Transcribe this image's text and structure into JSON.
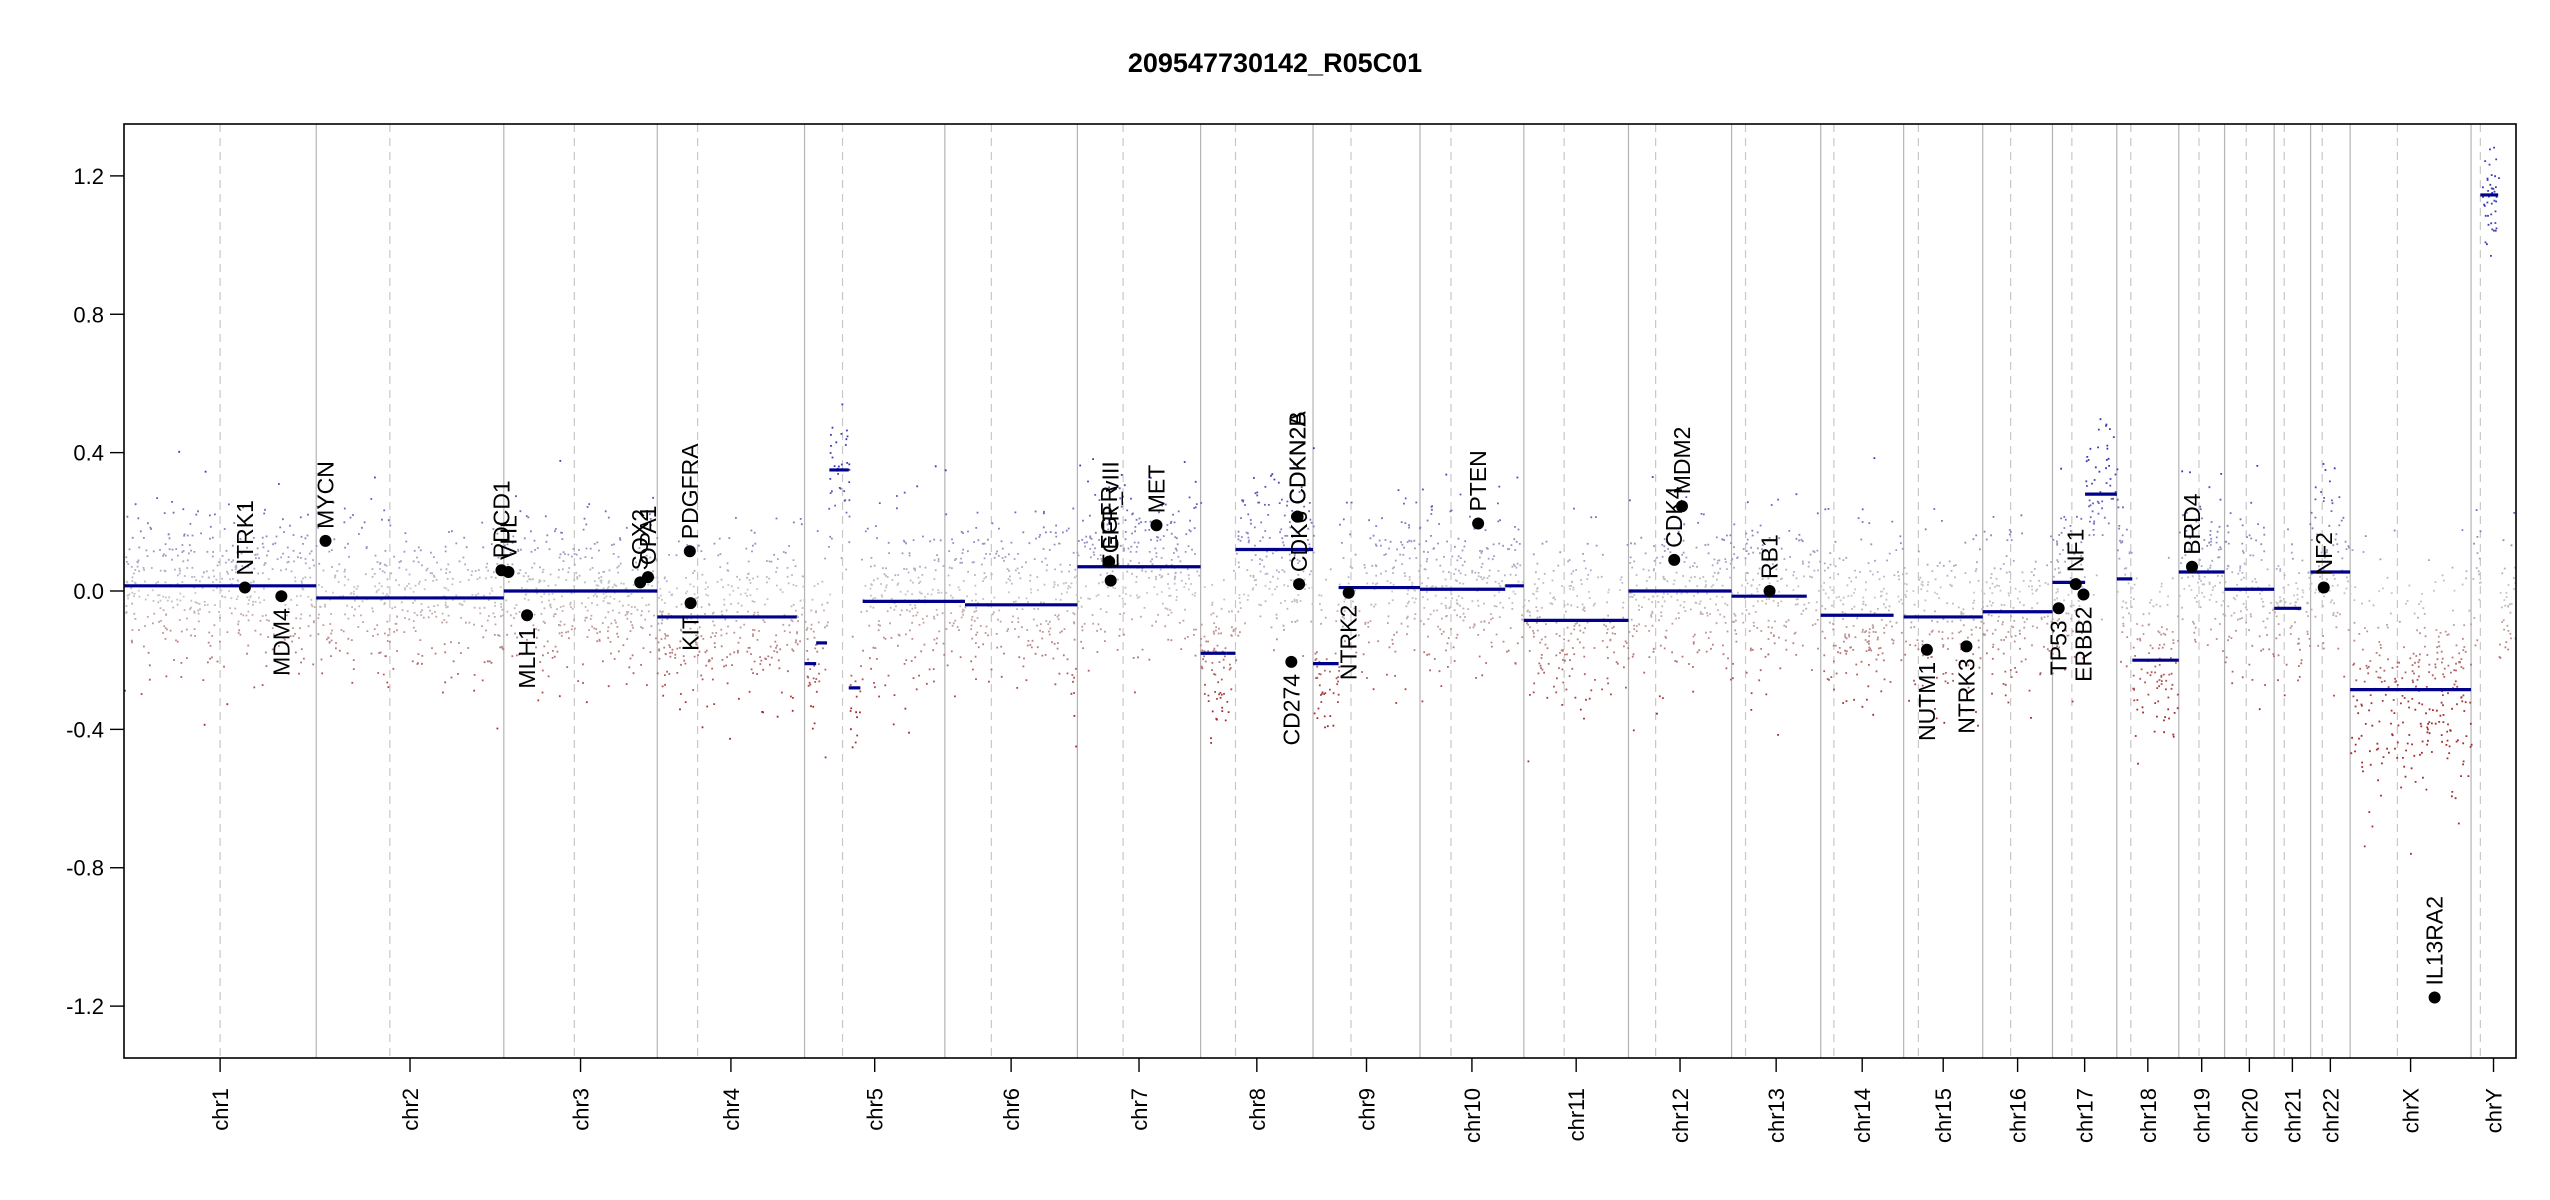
{
  "chart_data": {
    "type": "scatter",
    "title": "209547730142_R05C01",
    "xlabel": "",
    "ylabel": "",
    "ylim": [
      -1.35,
      1.35
    ],
    "yticks": [
      "1.2",
      "0.8",
      "0.4",
      "0.0",
      "-0.4",
      "-0.8",
      "-1.2"
    ],
    "ytick_values": [
      1.2,
      0.8,
      0.4,
      0.0,
      -0.4,
      -0.8,
      -1.2
    ],
    "colors": {
      "segment": "#00008b",
      "gain": "#3a3ab8",
      "loss": "#a52a2a",
      "neutral": "#c8c8c8",
      "axis": "#000000",
      "boundary": "#b4b4b4",
      "centromere": "#c8c8c8"
    },
    "chromosomes": [
      {
        "name": "chr1",
        "start": 0,
        "end": 248,
        "centromere": 124
      },
      {
        "name": "chr2",
        "start": 248,
        "end": 490,
        "centromere": 343
      },
      {
        "name": "chr3",
        "start": 490,
        "end": 688,
        "centromere": 581
      },
      {
        "name": "chr4",
        "start": 688,
        "end": 878,
        "centromere": 740
      },
      {
        "name": "chr5",
        "start": 878,
        "end": 1059,
        "centromere": 927
      },
      {
        "name": "chr6",
        "start": 1059,
        "end": 1230,
        "centromere": 1119
      },
      {
        "name": "chr7",
        "start": 1230,
        "end": 1389,
        "centromere": 1289
      },
      {
        "name": "chr8",
        "start": 1389,
        "end": 1534,
        "centromere": 1434
      },
      {
        "name": "chr9",
        "start": 1534,
        "end": 1672,
        "centromere": 1583
      },
      {
        "name": "chr10",
        "start": 1672,
        "end": 1806,
        "centromere": 1712
      },
      {
        "name": "chr11",
        "start": 1806,
        "end": 1941,
        "centromere": 1858
      },
      {
        "name": "chr12",
        "start": 1941,
        "end": 2074,
        "centromere": 1976
      },
      {
        "name": "chr13",
        "start": 2074,
        "end": 2189,
        "centromere": 2092
      },
      {
        "name": "chr14",
        "start": 2189,
        "end": 2296,
        "centromere": 2206
      },
      {
        "name": "chr15",
        "start": 2296,
        "end": 2398,
        "centromere": 2315
      },
      {
        "name": "chr16",
        "start": 2398,
        "end": 2488,
        "centromere": 2434
      },
      {
        "name": "chr17",
        "start": 2488,
        "end": 2571,
        "centromere": 2513
      },
      {
        "name": "chr18",
        "start": 2571,
        "end": 2651,
        "centromere": 2589
      },
      {
        "name": "chr19",
        "start": 2651,
        "end": 2710,
        "centromere": 2677
      },
      {
        "name": "chr20",
        "start": 2710,
        "end": 2774,
        "centromere": 2738
      },
      {
        "name": "chr21",
        "start": 2774,
        "end": 2821,
        "centromere": 2787
      },
      {
        "name": "chr22",
        "start": 2821,
        "end": 2872,
        "centromere": 2836
      },
      {
        "name": "chrX",
        "start": 2872,
        "end": 3028,
        "centromere": 2933
      },
      {
        "name": "chrY",
        "start": 3028,
        "end": 3086,
        "centromere": 3040
      }
    ],
    "segments": [
      {
        "x0": 0,
        "x1": 248,
        "y": 0.015
      },
      {
        "x0": 248,
        "x1": 490,
        "y": -0.02
      },
      {
        "x0": 490,
        "x1": 688,
        "y": 0.0
      },
      {
        "x0": 688,
        "x1": 868,
        "y": -0.075
      },
      {
        "x0": 878,
        "x1": 893,
        "y": -0.21
      },
      {
        "x0": 893,
        "x1": 907,
        "y": -0.15
      },
      {
        "x0": 910,
        "x1": 935,
        "y": 0.35
      },
      {
        "x0": 935,
        "x1": 950,
        "y": -0.28
      },
      {
        "x0": 953,
        "x1": 1085,
        "y": -0.03
      },
      {
        "x0": 1085,
        "x1": 1230,
        "y": -0.04
      },
      {
        "x0": 1230,
        "x1": 1389,
        "y": 0.07
      },
      {
        "x0": 1389,
        "x1": 1422,
        "y": -0.18
      },
      {
        "x0": 1422,
        "x1": 1434,
        "y": -0.18
      },
      {
        "x0": 1434,
        "x1": 1534,
        "y": 0.12
      },
      {
        "x0": 1534,
        "x1": 1567,
        "y": -0.21
      },
      {
        "x0": 1567,
        "x1": 1672,
        "y": 0.01
      },
      {
        "x0": 1672,
        "x1": 1782,
        "y": 0.005
      },
      {
        "x0": 1782,
        "x1": 1806,
        "y": 0.015
      },
      {
        "x0": 1806,
        "x1": 1941,
        "y": -0.085
      },
      {
        "x0": 1941,
        "x1": 2074,
        "y": 0.0
      },
      {
        "x0": 2074,
        "x1": 2171,
        "y": -0.015
      },
      {
        "x0": 2189,
        "x1": 2283,
        "y": -0.07
      },
      {
        "x0": 2296,
        "x1": 2398,
        "y": -0.075
      },
      {
        "x0": 2398,
        "x1": 2488,
        "y": -0.06
      },
      {
        "x0": 2488,
        "x1": 2530,
        "y": 0.025
      },
      {
        "x0": 2530,
        "x1": 2571,
        "y": 0.28
      },
      {
        "x0": 2571,
        "x1": 2591,
        "y": 0.035
      },
      {
        "x0": 2591,
        "x1": 2651,
        "y": -0.2
      },
      {
        "x0": 2651,
        "x1": 2710,
        "y": 0.055
      },
      {
        "x0": 2710,
        "x1": 2774,
        "y": 0.005
      },
      {
        "x0": 2774,
        "x1": 2809,
        "y": -0.05
      },
      {
        "x0": 2821,
        "x1": 2872,
        "y": 0.055
      },
      {
        "x0": 2872,
        "x1": 3028,
        "y": -0.285
      },
      {
        "x0": 3040,
        "x1": 3063,
        "y": 1.145
      }
    ],
    "genes": [
      {
        "name": "NTRK1",
        "x": 156,
        "y": 0.01,
        "label_side": "above"
      },
      {
        "name": "MDM4",
        "x": 203,
        "y": -0.015,
        "label_side": "below"
      },
      {
        "name": "MYCN",
        "x": 260,
        "y": 0.145,
        "label_side": "above"
      },
      {
        "name": "PDCD1",
        "x": 487,
        "y": 0.06,
        "label_side": "above"
      },
      {
        "name": "VHL",
        "x": 496,
        "y": 0.055,
        "label_side": "above"
      },
      {
        "name": "MLH1",
        "x": 520,
        "y": -0.07,
        "label_side": "below"
      },
      {
        "name": "SOX2",
        "x": 666,
        "y": 0.025,
        "label_side": "above"
      },
      {
        "name": "OPA1",
        "x": 676,
        "y": 0.04,
        "label_side": "above"
      },
      {
        "name": "PDGFRA",
        "x": 730,
        "y": 0.115,
        "label_side": "above"
      },
      {
        "name": "KIT",
        "x": 731,
        "y": -0.035,
        "label_side": "below"
      },
      {
        "name": "EGFR",
        "x": 1271,
        "y": 0.085,
        "label_side": "above"
      },
      {
        "name": "EGFR_vIII",
        "x": 1273,
        "y": 0.03,
        "label_side": "above"
      },
      {
        "name": "MET",
        "x": 1332,
        "y": 0.19,
        "label_side": "above"
      },
      {
        "name": "CDKN2A",
        "x": 1514,
        "y": 0.215,
        "label_side": "above"
      },
      {
        "name": "CDKN2B",
        "x": 1514,
        "y": 0.215,
        "label_side": "above"
      },
      {
        "name": "CDK6",
        "x": 1516,
        "y": 0.02,
        "label_side": "above"
      },
      {
        "name": "CD274",
        "x": 1506,
        "y": -0.205,
        "label_side": "below"
      },
      {
        "name": "NTRK2",
        "x": 1580,
        "y": -0.005,
        "label_side": "below"
      },
      {
        "name": "PTEN",
        "x": 1747,
        "y": 0.195,
        "label_side": "above"
      },
      {
        "name": "CDK4",
        "x": 2000,
        "y": 0.09,
        "label_side": "above"
      },
      {
        "name": "MDM2",
        "x": 2010,
        "y": 0.245,
        "label_side": "above"
      },
      {
        "name": "RB1",
        "x": 2123,
        "y": 0.0,
        "label_side": "above"
      },
      {
        "name": "NUTM1",
        "x": 2326,
        "y": -0.17,
        "label_side": "below"
      },
      {
        "name": "NTRK3",
        "x": 2377,
        "y": -0.16,
        "label_side": "below"
      },
      {
        "name": "TP53",
        "x": 2496,
        "y": -0.05,
        "label_side": "below"
      },
      {
        "name": "NF1",
        "x": 2518,
        "y": 0.02,
        "label_side": "above"
      },
      {
        "name": "ERBB2",
        "x": 2528,
        "y": -0.01,
        "label_side": "below"
      },
      {
        "name": "BRD4",
        "x": 2668,
        "y": 0.07,
        "label_side": "above"
      },
      {
        "name": "NF2",
        "x": 2838,
        "y": 0.01,
        "label_side": "above"
      },
      {
        "name": "IL13RA2",
        "x": 2981,
        "y": -1.175,
        "label_side": "above"
      }
    ]
  }
}
